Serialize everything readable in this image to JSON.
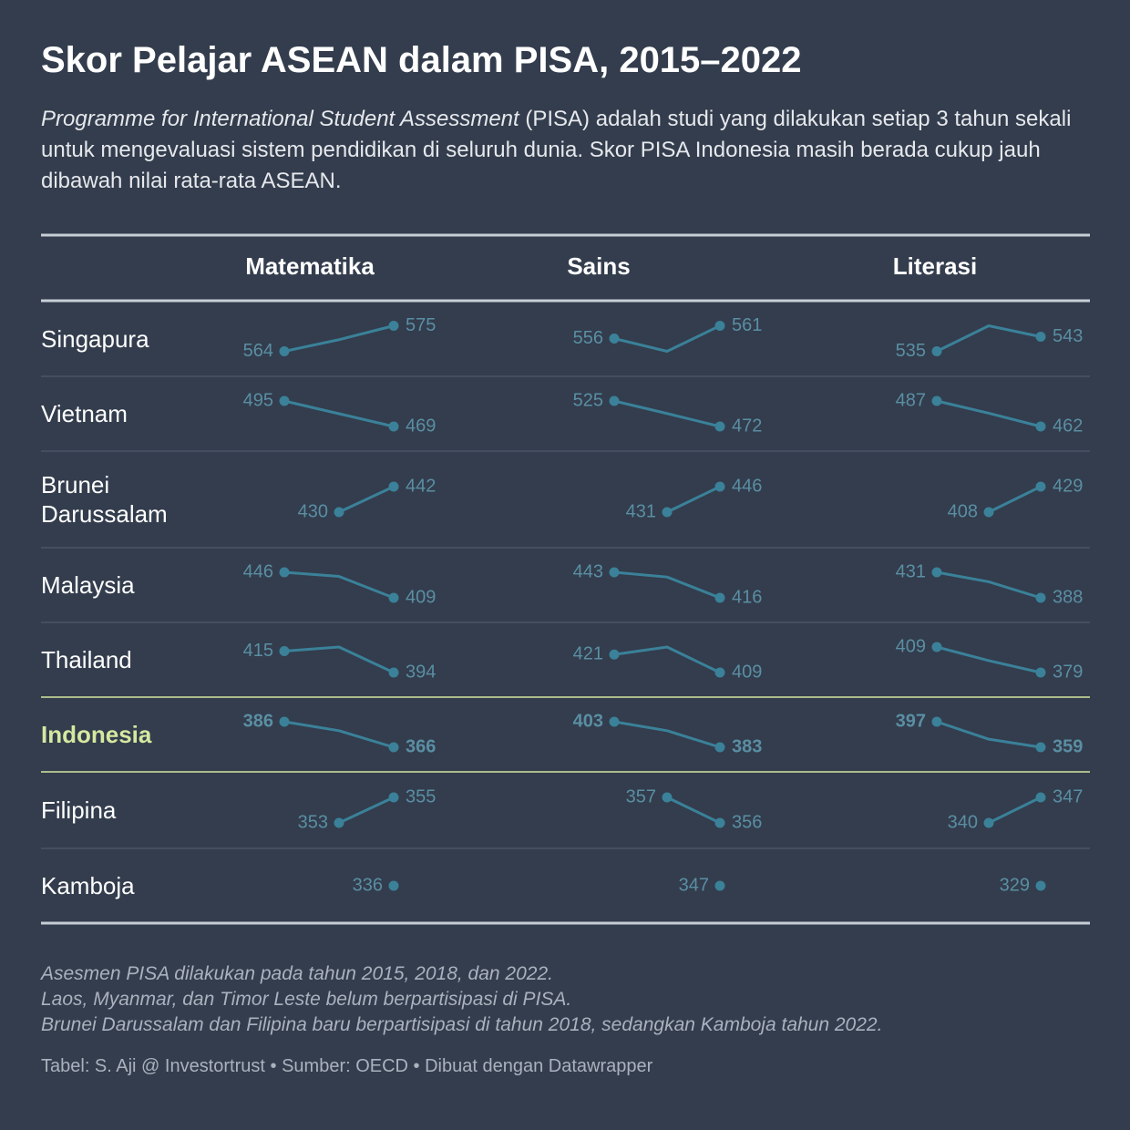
{
  "title": "Skor Pelajar ASEAN dalam PISA, 2015–2022",
  "subtitle": {
    "italic": "Programme for International Student Assessment",
    "text": "(PISA) adalah studi yang dilakukan setiap 3 tahun sekali untuk mengevaluasi sistem pendidikan di seluruh dunia. Skor PISA Indonesia masih berada cukup jauh dibawah nilai rata-rata ASEAN."
  },
  "table": {
    "columns": [
      "Matematika",
      "Sains",
      "Literasi"
    ],
    "rows": [
      {
        "country": "Singapura",
        "values": [
          [
            564,
            569,
            575
          ],
          [
            556,
            551,
            561
          ],
          [
            535,
            549,
            543
          ]
        ]
      },
      {
        "country": "Vietnam",
        "values": [
          [
            495,
            482,
            469
          ],
          [
            525,
            499,
            472
          ],
          [
            487,
            475,
            462
          ]
        ]
      },
      {
        "country": "Brunei Darussalam",
        "values": [
          [
            null,
            430,
            442
          ],
          [
            null,
            431,
            446
          ],
          [
            null,
            408,
            429
          ]
        ]
      },
      {
        "country": "Malaysia",
        "values": [
          [
            446,
            440,
            409
          ],
          [
            443,
            438,
            416
          ],
          [
            431,
            415,
            388
          ]
        ]
      },
      {
        "country": "Thailand",
        "values": [
          [
            415,
            419,
            394
          ],
          [
            421,
            426,
            409
          ],
          [
            409,
            393,
            379
          ]
        ]
      },
      {
        "country": "Indonesia",
        "highlight": true,
        "values": [
          [
            386,
            379,
            366
          ],
          [
            403,
            396,
            383
          ],
          [
            397,
            371,
            359
          ]
        ]
      },
      {
        "country": "Filipina",
        "values": [
          [
            null,
            353,
            355
          ],
          [
            null,
            357,
            356
          ],
          [
            null,
            340,
            347
          ]
        ]
      },
      {
        "country": "Kamboja",
        "values": [
          [
            null,
            null,
            336
          ],
          [
            null,
            null,
            347
          ],
          [
            null,
            null,
            329
          ]
        ]
      }
    ]
  },
  "notes": [
    "Asesmen PISA dilakukan pada tahun 2015, 2018, dan 2022.",
    "Laos, Myanmar, dan Timor Leste belum berpartisipasi di PISA.",
    "Brunei Darussalam dan Filipina baru berpartisipasi di tahun 2018, sedangkan Kamboja tahun 2022."
  ],
  "credit": "Tabel: S. Aji @ Investortrust • Sumber: OECD • Dibuat dengan Datawrapper"
}
